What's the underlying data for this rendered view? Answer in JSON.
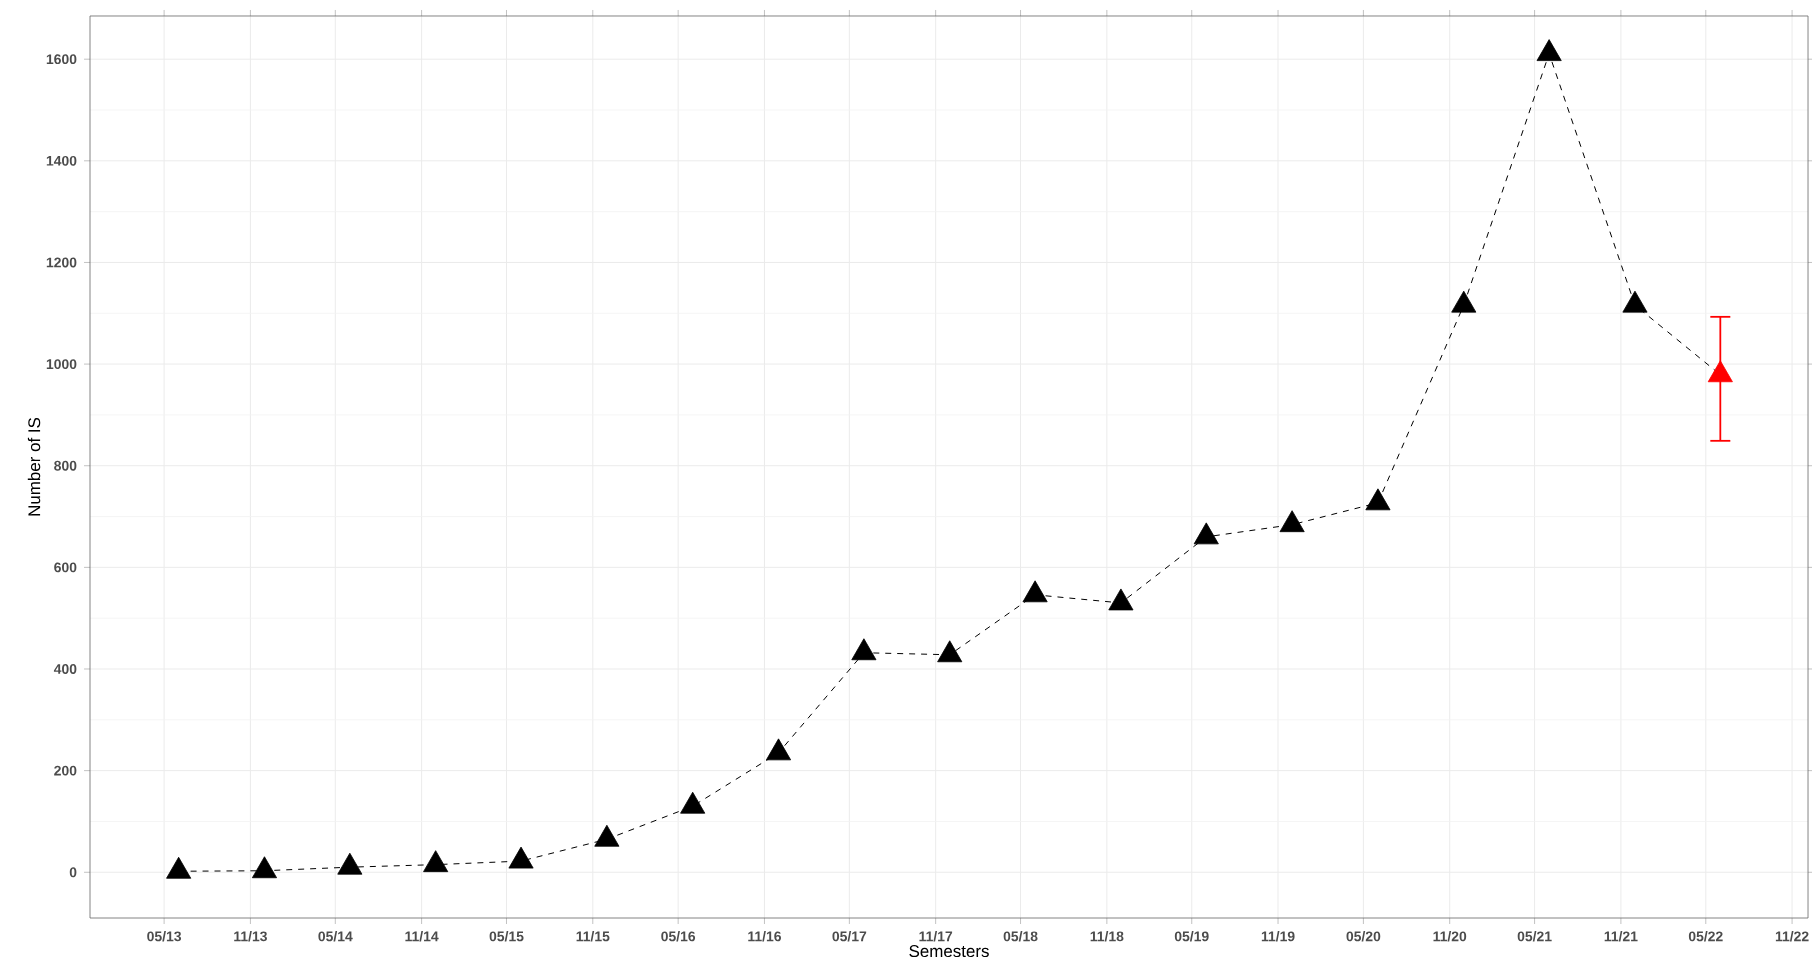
{
  "chart_data": {
    "type": "line",
    "xlabel": "Semesters",
    "ylabel": "Number of IS",
    "x": [
      "2013-06",
      "2013-12",
      "2014-06",
      "2014-12",
      "2015-06",
      "2015-12",
      "2016-06",
      "2016-12",
      "2017-06",
      "2017-12",
      "2018-06",
      "2018-12",
      "2019-06",
      "2019-12",
      "2020-06",
      "2020-12",
      "2021-06",
      "2021-12",
      "2022-06"
    ],
    "values": [
      2,
      3,
      10,
      15,
      22,
      65,
      130,
      235,
      432,
      428,
      546,
      530,
      660,
      684,
      727,
      1116,
      1611,
      1116,
      979
    ],
    "color": "#000000",
    "colors": [
      "#000000",
      "#000000",
      "#000000",
      "#000000",
      "#000000",
      "#000000",
      "#000000",
      "#000000",
      "#000000",
      "#000000",
      "#000000",
      "#000000",
      "#000000",
      "#000000",
      "#000000",
      "#000000",
      "#000000",
      "#000000",
      "#ff0000"
    ],
    "errors": [
      null,
      null,
      null,
      null,
      null,
      null,
      null,
      null,
      null,
      null,
      null,
      null,
      null,
      null,
      null,
      null,
      null,
      null,
      [
        849,
        1093
      ]
    ],
    "xlim": [
      "2012-11-24",
      "2022-12-05"
    ],
    "xticks": [
      {
        "value": "2013-05",
        "label": "05/13"
      },
      {
        "value": "2013-11",
        "label": "11/13"
      },
      {
        "value": "2014-05",
        "label": "05/14"
      },
      {
        "value": "2014-11",
        "label": "11/14"
      },
      {
        "value": "2015-05",
        "label": "05/15"
      },
      {
        "value": "2015-11",
        "label": "11/15"
      },
      {
        "value": "2016-05",
        "label": "05/16"
      },
      {
        "value": "2016-11",
        "label": "11/16"
      },
      {
        "value": "2017-05",
        "label": "05/17"
      },
      {
        "value": "2017-11",
        "label": "11/17"
      },
      {
        "value": "2018-05",
        "label": "05/18"
      },
      {
        "value": "2018-11",
        "label": "11/18"
      },
      {
        "value": "2019-05",
        "label": "05/19"
      },
      {
        "value": "2019-11",
        "label": "11/19"
      },
      {
        "value": "2020-05",
        "label": "05/20"
      },
      {
        "value": "2020-11",
        "label": "11/20"
      },
      {
        "value": "2021-05",
        "label": "05/21"
      },
      {
        "value": "2021-11",
        "label": "11/21"
      },
      {
        "value": "2022-05",
        "label": "05/22"
      },
      {
        "value": "2022-11",
        "label": "11/22"
      }
    ],
    "ylim": [
      -90,
      1685
    ],
    "yticks": [
      0,
      200,
      400,
      600,
      800,
      1000,
      1200,
      1400,
      1600
    ],
    "grid": true,
    "marker": "triangle",
    "line_style": "dashed"
  }
}
